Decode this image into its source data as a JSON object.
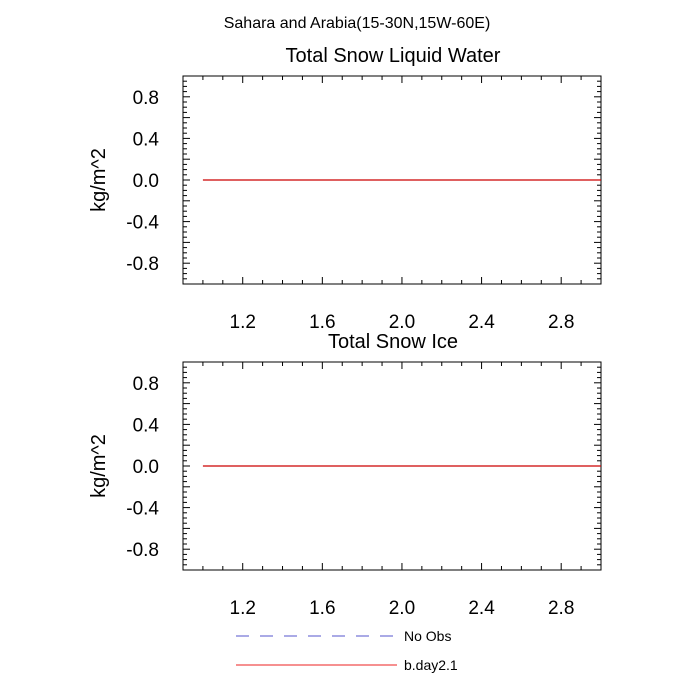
{
  "figure": {
    "suptitle": "Sahara and Arabia(15-30N,15W-60E)"
  },
  "legend": {
    "placement": "bottom-center",
    "entries": [
      {
        "label": "No Obs",
        "color": "#5555cc",
        "dash": "dashed"
      },
      {
        "label": "b.day2.1",
        "color": "#ee2222",
        "dash": "solid"
      }
    ]
  },
  "chart_data": [
    {
      "type": "line",
      "title": "Total Snow Liquid Water",
      "ylabel": "kg/m^2",
      "xlabel": "",
      "xlim": [
        0.9,
        3.0
      ],
      "ylim": [
        -1.0,
        1.0
      ],
      "xticks": [
        "1.2",
        "1.6",
        "2.0",
        "2.4",
        "2.8"
      ],
      "yticks": [
        "0.8",
        "0.4",
        "0.0",
        "-0.4",
        "-0.8"
      ],
      "grid": false,
      "series": [
        {
          "name": "b.day2.1",
          "color": "#cc0000",
          "x": [
            1.0,
            3.0
          ],
          "y": [
            0.0,
            0.0
          ]
        }
      ]
    },
    {
      "type": "line",
      "title": "Total Snow Ice",
      "ylabel": "kg/m^2",
      "xlabel": "",
      "xlim": [
        0.9,
        3.0
      ],
      "ylim": [
        -1.0,
        1.0
      ],
      "xticks": [
        "1.2",
        "1.6",
        "2.0",
        "2.4",
        "2.8"
      ],
      "yticks": [
        "0.8",
        "0.4",
        "0.0",
        "-0.4",
        "-0.8"
      ],
      "grid": false,
      "series": [
        {
          "name": "b.day2.1",
          "color": "#cc0000",
          "x": [
            1.0,
            3.0
          ],
          "y": [
            0.0,
            0.0
          ]
        }
      ]
    }
  ]
}
